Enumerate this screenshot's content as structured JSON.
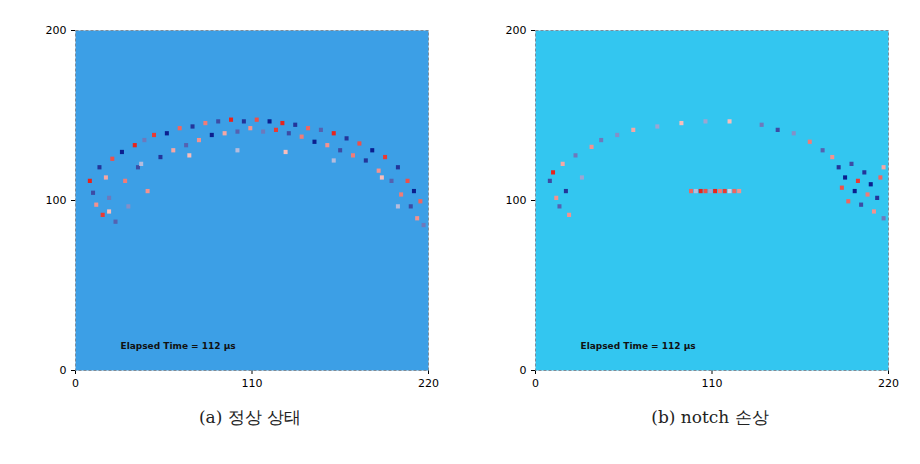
{
  "chart_data": [
    {
      "type": "heatmap",
      "caption": "(a) 정상 상태",
      "annotation": "Elapsed Time = 112 μs",
      "xlim": [
        0,
        220
      ],
      "ylim": [
        0,
        200
      ],
      "xticks": [
        0,
        110,
        220
      ],
      "yticks": [
        0,
        100,
        200
      ],
      "color": "#3c9fe6",
      "cell_colors": [
        "#0b1f8f",
        "#ffffff",
        "#e8241c"
      ],
      "clim": [
        -1,
        1
      ],
      "cell_size": 2.5,
      "cells": [
        [
          8,
          110,
          1
        ],
        [
          10,
          103,
          -0.8
        ],
        [
          12,
          96,
          0.5
        ],
        [
          14,
          118,
          -0.9
        ],
        [
          16,
          90,
          0.9
        ],
        [
          18,
          112,
          0.4
        ],
        [
          20,
          100,
          -0.6
        ],
        [
          22,
          123,
          0.8
        ],
        [
          24,
          86,
          -0.7
        ],
        [
          28,
          127,
          -1
        ],
        [
          30,
          110,
          0.6
        ],
        [
          32,
          95,
          -0.5
        ],
        [
          36,
          131,
          1
        ],
        [
          38,
          118,
          -0.8
        ],
        [
          42,
          134,
          -0.6
        ],
        [
          44,
          104,
          0.5
        ],
        [
          48,
          137,
          0.9
        ],
        [
          52,
          124,
          -0.9
        ],
        [
          56,
          138,
          -1
        ],
        [
          60,
          128,
          0.4
        ],
        [
          64,
          141,
          0.7
        ],
        [
          68,
          131,
          -0.7
        ],
        [
          72,
          142,
          -0.9
        ],
        [
          76,
          134,
          0.5
        ],
        [
          80,
          144,
          0.6
        ],
        [
          84,
          137,
          -1
        ],
        [
          88,
          145,
          -0.8
        ],
        [
          92,
          138,
          0.4
        ],
        [
          96,
          146,
          1
        ],
        [
          100,
          139,
          -0.7
        ],
        [
          104,
          145,
          -0.9
        ],
        [
          108,
          141,
          0.5
        ],
        [
          112,
          146,
          0.8
        ],
        [
          116,
          139,
          -0.6
        ],
        [
          120,
          145,
          -1
        ],
        [
          124,
          140,
          0.9
        ],
        [
          128,
          144,
          1
        ],
        [
          132,
          138,
          -0.8
        ],
        [
          136,
          143,
          -0.9
        ],
        [
          140,
          136,
          0.6
        ],
        [
          144,
          141,
          0.7
        ],
        [
          148,
          133,
          -1
        ],
        [
          152,
          140,
          -0.7
        ],
        [
          156,
          131,
          0.5
        ],
        [
          160,
          138,
          1
        ],
        [
          164,
          128,
          -0.8
        ],
        [
          168,
          135,
          -0.9
        ],
        [
          172,
          125,
          0.6
        ],
        [
          176,
          132,
          0.8
        ],
        [
          180,
          122,
          -0.9
        ],
        [
          184,
          128,
          -1
        ],
        [
          188,
          116,
          0.5
        ],
        [
          192,
          124,
          0.9
        ],
        [
          196,
          110,
          -0.7
        ],
        [
          200,
          118,
          -0.9
        ],
        [
          202,
          102,
          0.6
        ],
        [
          206,
          110,
          0.8
        ],
        [
          208,
          95,
          -0.8
        ],
        [
          210,
          104,
          -1
        ],
        [
          212,
          88,
          0.5
        ],
        [
          214,
          98,
          0.7
        ],
        [
          216,
          84,
          -0.6
        ],
        [
          40,
          120,
          -0.3
        ],
        [
          70,
          125,
          0.3
        ],
        [
          100,
          128,
          -0.3
        ],
        [
          130,
          127,
          0.3
        ],
        [
          160,
          122,
          -0.3
        ],
        [
          190,
          112,
          0.3
        ],
        [
          20,
          92,
          0.3
        ],
        [
          200,
          95,
          -0.3
        ]
      ]
    },
    {
      "type": "heatmap",
      "caption": "(b) notch 손상",
      "annotation": "Elapsed Time = 112 μs",
      "xlim": [
        0,
        220
      ],
      "ylim": [
        0,
        200
      ],
      "xticks": [
        0,
        110,
        220
      ],
      "yticks": [
        0,
        100,
        200
      ],
      "color": "#33c6f0",
      "cell_colors": [
        "#0b1f8f",
        "#ffffff",
        "#e8241c"
      ],
      "clim": [
        -1,
        1
      ],
      "cell_size": 2.5,
      "cells": [
        [
          8,
          110,
          -0.8
        ],
        [
          10,
          115,
          1
        ],
        [
          12,
          100,
          0.5
        ],
        [
          14,
          95,
          -0.7
        ],
        [
          16,
          120,
          0.4
        ],
        [
          18,
          104,
          -0.9
        ],
        [
          20,
          90,
          0.5
        ],
        [
          24,
          125,
          -0.6
        ],
        [
          28,
          112,
          -0.4
        ],
        [
          34,
          130,
          0.5
        ],
        [
          40,
          134,
          -0.6
        ],
        [
          50,
          137,
          -0.5
        ],
        [
          60,
          140,
          0.4
        ],
        [
          75,
          142,
          -0.4
        ],
        [
          90,
          144,
          0.3
        ],
        [
          105,
          145,
          -0.4
        ],
        [
          120,
          145,
          0.3
        ],
        [
          140,
          143,
          -0.6
        ],
        [
          150,
          140,
          -0.8
        ],
        [
          160,
          138,
          -0.5
        ],
        [
          170,
          133,
          0.6
        ],
        [
          178,
          128,
          -0.7
        ],
        [
          184,
          124,
          0.5
        ],
        [
          188,
          118,
          -0.9
        ],
        [
          190,
          106,
          0.8
        ],
        [
          192,
          112,
          -1
        ],
        [
          194,
          98,
          0.7
        ],
        [
          196,
          120,
          -0.8
        ],
        [
          198,
          104,
          -1
        ],
        [
          200,
          110,
          0.9
        ],
        [
          202,
          96,
          -0.8
        ],
        [
          204,
          115,
          -0.9
        ],
        [
          206,
          102,
          0.6
        ],
        [
          208,
          108,
          -1
        ],
        [
          210,
          92,
          0.5
        ],
        [
          212,
          100,
          -0.9
        ],
        [
          214,
          112,
          0.7
        ],
        [
          216,
          88,
          -0.6
        ],
        [
          216,
          118,
          0.4
        ],
        [
          96,
          104,
          0.7
        ],
        [
          99,
          104,
          -0.3
        ],
        [
          102,
          104,
          1
        ],
        [
          105,
          104,
          0.8
        ],
        [
          108,
          104,
          -0.4
        ],
        [
          111,
          104,
          1
        ],
        [
          114,
          104,
          0.6
        ],
        [
          117,
          104,
          0.9
        ],
        [
          120,
          104,
          -0.2
        ],
        [
          123,
          104,
          0.7
        ],
        [
          126,
          104,
          0.5
        ]
      ]
    }
  ]
}
